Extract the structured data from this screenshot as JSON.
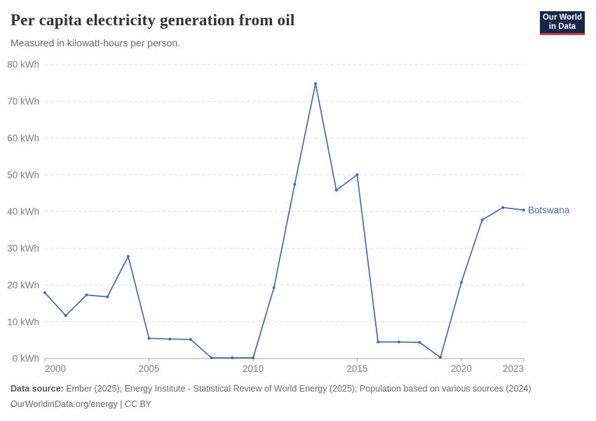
{
  "header": {
    "title": "Per capita electricity generation from oil",
    "subtitle": "Measured in kilowatt-hours per person.",
    "logo_line1": "Our World",
    "logo_line2": "in Data",
    "logo_bg_color": "#12274a",
    "logo_bar_color": "#d8352a"
  },
  "chart_data": {
    "type": "line",
    "title": "Per capita electricity generation from oil",
    "subtitle": "Measured in kilowatt-hours per person.",
    "unit": "kWh",
    "xlabel": "",
    "ylabel": "",
    "xlim": [
      2000,
      2023
    ],
    "ylim": [
      0,
      80
    ],
    "grid": "horizontal-dashed",
    "legend_position": "line-end-label",
    "line_color": "#4c6aa2",
    "x": [
      2000,
      2001,
      2002,
      2003,
      2004,
      2005,
      2006,
      2007,
      2008,
      2009,
      2010,
      2011,
      2012,
      2013,
      2014,
      2015,
      2016,
      2017,
      2018,
      2019,
      2020,
      2021,
      2022,
      2023
    ],
    "series": [
      {
        "name": "Botswana",
        "color": "#4c6aa2",
        "values": [
          17.9,
          11.7,
          17.3,
          16.8,
          27.8,
          5.5,
          5.3,
          5.2,
          0.2,
          0.2,
          0.2,
          19.3,
          47.4,
          74.8,
          45.8,
          50.0,
          4.5,
          4.5,
          4.4,
          0.3,
          20.7,
          37.7,
          41.1,
          40.4
        ]
      }
    ],
    "yticks": [
      {
        "value": 0,
        "label": "0 kWh"
      },
      {
        "value": 10,
        "label": "10 kWh"
      },
      {
        "value": 20,
        "label": "20 kWh"
      },
      {
        "value": 30,
        "label": "30 kWh"
      },
      {
        "value": 40,
        "label": "40 kWh"
      },
      {
        "value": 50,
        "label": "50 kWh"
      },
      {
        "value": 60,
        "label": "60 kWh"
      },
      {
        "value": 70,
        "label": "70 kWh"
      },
      {
        "value": 80,
        "label": "80 kWh"
      }
    ],
    "xticks": [
      {
        "value": 2000,
        "label": "2000"
      },
      {
        "value": 2005,
        "label": "2005"
      },
      {
        "value": 2010,
        "label": "2010"
      },
      {
        "value": 2015,
        "label": "2015"
      },
      {
        "value": 2020,
        "label": "2020"
      },
      {
        "value": 2023,
        "label": "2023"
      }
    ]
  },
  "footer": {
    "source_label": "Data source:",
    "source_text": "Ember (2025); Energy Institute - Statistical Review of World Energy (2025); Population based on various sources (2024)",
    "note": "OurWorldinData.org/energy | CC BY"
  }
}
